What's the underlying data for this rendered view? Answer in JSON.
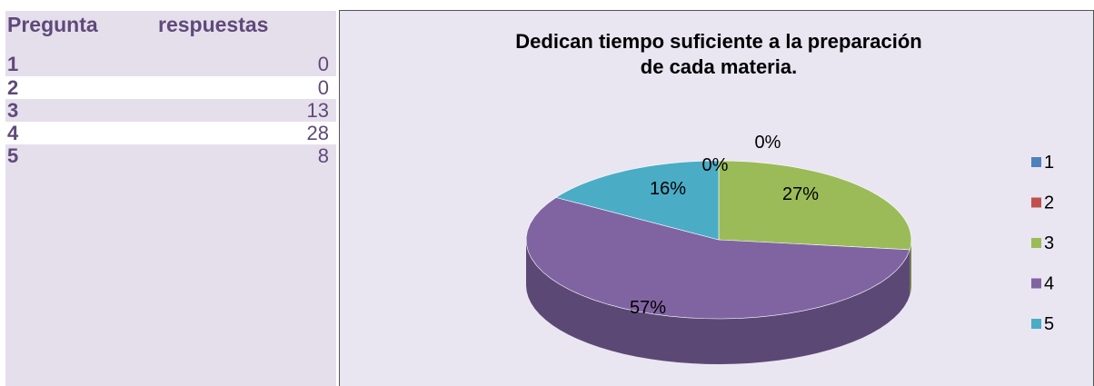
{
  "table": {
    "header": [
      "Pregunta",
      "respuestas"
    ],
    "rows": [
      [
        "1",
        "0"
      ],
      [
        "2",
        "0"
      ],
      [
        "3",
        "13"
      ],
      [
        "4",
        "28"
      ],
      [
        "5",
        "8"
      ]
    ]
  },
  "chart_data": {
    "type": "pie",
    "title": [
      "Dedican tiempo suficiente a la preparación",
      "de cada materia."
    ],
    "categories": [
      "1",
      "2",
      "3",
      "4",
      "5"
    ],
    "values": [
      0,
      0,
      27,
      57,
      16
    ],
    "value_labels": [
      "0%",
      "0%",
      "27%",
      "57%",
      "16%"
    ],
    "colors": [
      "#4f81bd",
      "#c0504d",
      "#9bbb59",
      "#8064a2",
      "#4bacc6"
    ],
    "legend": "right"
  }
}
